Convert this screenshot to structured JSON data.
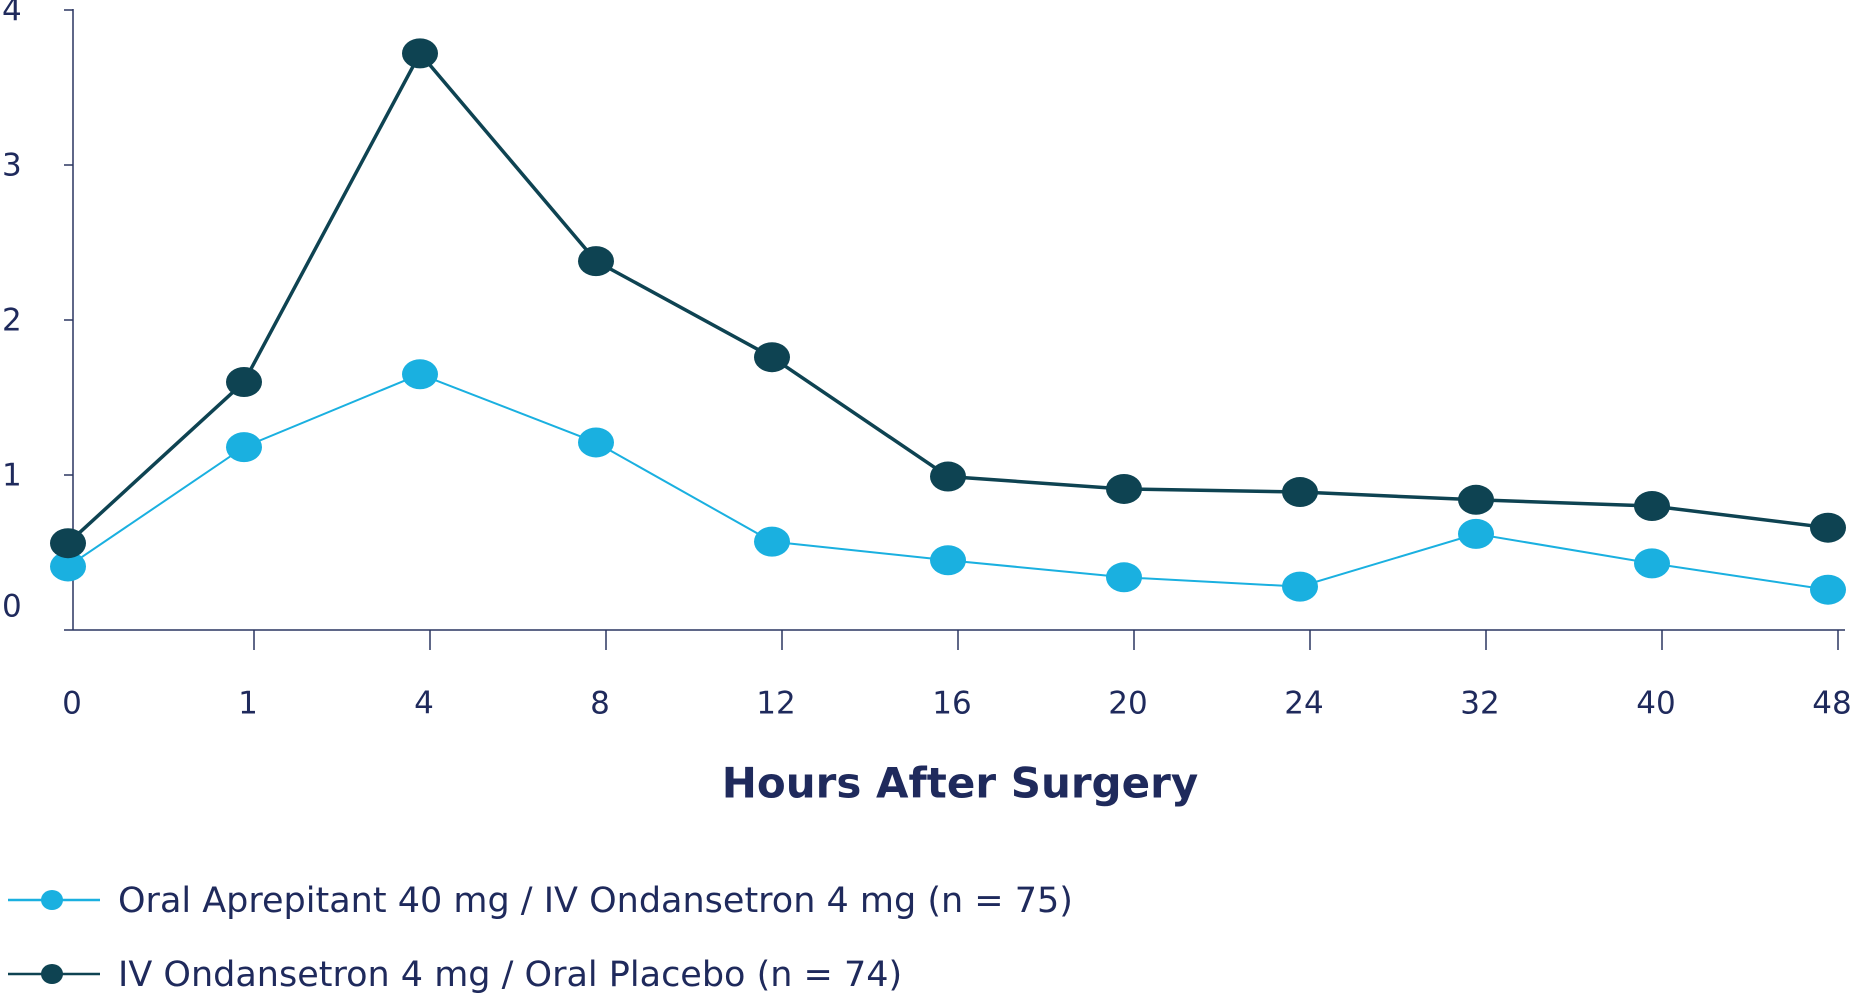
{
  "chart_data": {
    "type": "line",
    "x_label": "Hours After Surgery",
    "categories": [
      "0",
      "1",
      "4",
      "8",
      "12",
      "16",
      "20",
      "24",
      "32",
      "40",
      "48"
    ],
    "series": [
      {
        "name": "Oral Aprepitant 40 mg / IV Ondansetron 4 mg (n = 75)",
        "color": "#1ab0e0",
        "values": [
          0.41,
          1.18,
          1.65,
          1.21,
          0.57,
          0.45,
          0.34,
          0.28,
          0.62,
          0.43,
          0.26
        ]
      },
      {
        "name": "IV Ondansetron 4 mg / Oral Placebo (n = 74)",
        "color": "#0e4352",
        "values": [
          0.56,
          1.6,
          3.72,
          2.38,
          1.76,
          0.99,
          0.91,
          0.89,
          0.84,
          0.8,
          0.66
        ]
      }
    ],
    "ylim": [
      0,
      4
    ],
    "yticks": [
      0,
      1,
      2,
      3,
      4
    ],
    "grid": false,
    "legend": "bottom"
  }
}
